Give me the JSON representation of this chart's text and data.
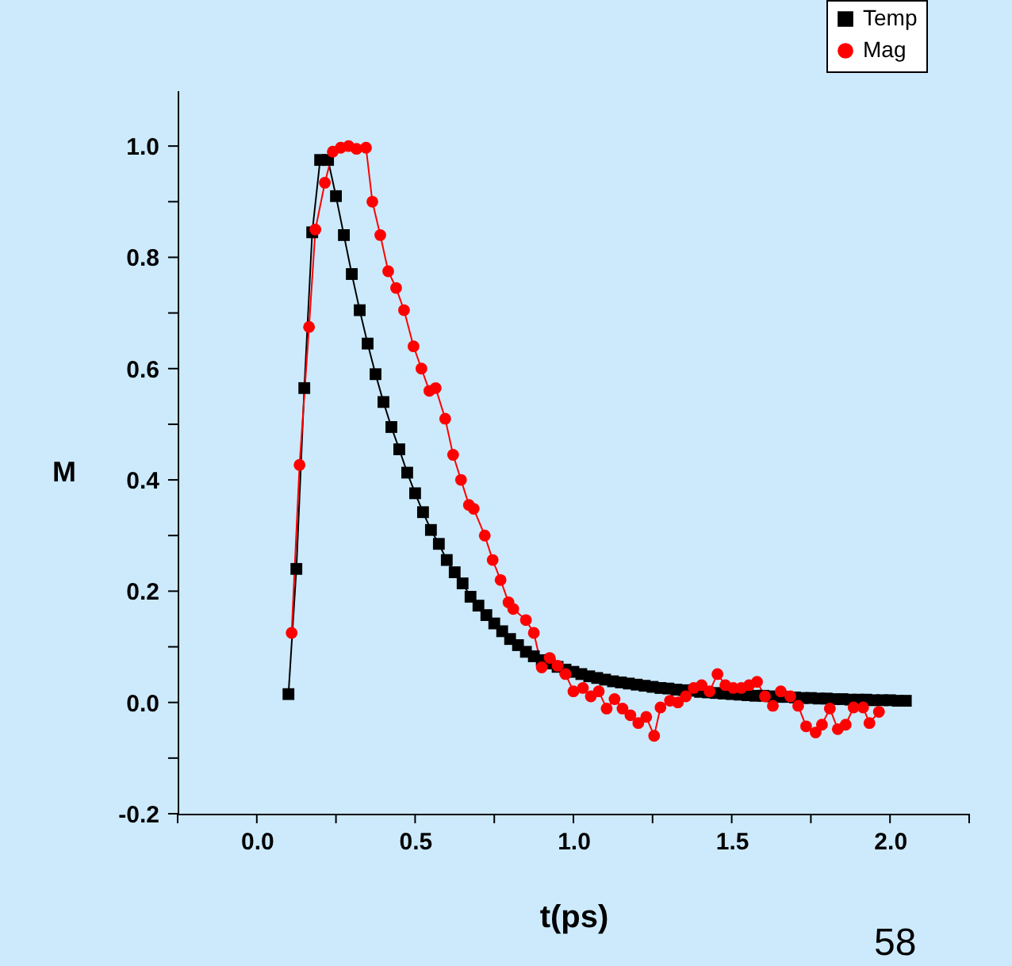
{
  "chart_data": {
    "type": "line",
    "xlabel": "t(ps)",
    "ylabel": "M",
    "xlim": [
      -0.25,
      2.25
    ],
    "ylim": [
      -0.2,
      1.1
    ],
    "xticks": [
      {
        "value": -0.25,
        "label": null
      },
      {
        "value": 0,
        "label": "0.0"
      },
      {
        "value": 0.25,
        "label": null
      },
      0.5,
      {
        "value": 0.75,
        "label": null
      },
      {
        "value": 1,
        "label": "1.0"
      },
      {
        "value": 1.25,
        "label": null
      },
      1.5,
      {
        "value": 1.75,
        "label": null
      },
      {
        "value": 2,
        "label": "2.0"
      },
      {
        "value": 2.25,
        "label": null
      }
    ],
    "yticks": [
      -0.2,
      {
        "value": -0.1,
        "label": null
      },
      {
        "value": 0,
        "label": "0.0"
      },
      {
        "value": 0.1,
        "label": null
      },
      0.2,
      {
        "value": 0.3,
        "label": null
      },
      0.4,
      {
        "value": 0.5,
        "label": null
      },
      0.6,
      {
        "value": 0.7,
        "label": null
      },
      0.8,
      {
        "value": 0.9,
        "label": null
      },
      {
        "value": 1,
        "label": "1.0"
      }
    ],
    "grid": false,
    "legend": "top right",
    "line_style": "solid",
    "annotations": [
      "58"
    ],
    "series": [
      {
        "name": "Temp",
        "color": "#000000",
        "marker": "square",
        "x": [
          0.1,
          0.125,
          0.15,
          0.175,
          0.2,
          0.225,
          0.25,
          0.275,
          0.3,
          0.325,
          0.35,
          0.375,
          0.4,
          0.425,
          0.45,
          0.475,
          0.5,
          0.525,
          0.55,
          0.575,
          0.6,
          0.625,
          0.65,
          0.675,
          0.7,
          0.725,
          0.75,
          0.775,
          0.8,
          0.825,
          0.85,
          0.875,
          0.9,
          0.925,
          0.95,
          0.975,
          1.0,
          1.025,
          1.05,
          1.075,
          1.1,
          1.125,
          1.15,
          1.175,
          1.2,
          1.225,
          1.25,
          1.275,
          1.3,
          1.325,
          1.35,
          1.375,
          1.4,
          1.425,
          1.45,
          1.475,
          1.5,
          1.525,
          1.55,
          1.575,
          1.6,
          1.625,
          1.65,
          1.675,
          1.7,
          1.725,
          1.75,
          1.775,
          1.8,
          1.825,
          1.85,
          1.875,
          1.9,
          1.925,
          1.95,
          1.975,
          2.0,
          2.025,
          2.05
        ],
        "values": [
          0.015,
          0.24,
          0.565,
          0.845,
          0.975,
          0.975,
          0.91,
          0.84,
          0.77,
          0.705,
          0.645,
          0.59,
          0.54,
          0.495,
          0.455,
          0.413,
          0.376,
          0.342,
          0.31,
          0.285,
          0.256,
          0.234,
          0.214,
          0.19,
          0.174,
          0.157,
          0.142,
          0.128,
          0.114,
          0.103,
          0.091,
          0.083,
          0.076,
          0.07,
          0.064,
          0.059,
          0.055,
          0.051,
          0.047,
          0.044,
          0.041,
          0.038,
          0.036,
          0.034,
          0.032,
          0.03,
          0.028,
          0.026,
          0.025,
          0.023,
          0.022,
          0.021,
          0.019,
          0.018,
          0.017,
          0.016,
          0.015,
          0.014,
          0.013,
          0.012,
          0.012,
          0.011,
          0.01,
          0.01,
          0.009,
          0.008,
          0.008,
          0.007,
          0.007,
          0.006,
          0.006,
          0.005,
          0.005,
          0.005,
          0.004,
          0.004,
          0.004,
          0.003,
          0.003
        ]
      },
      {
        "name": "Mag",
        "color": "#ff0000",
        "marker": "circle",
        "x": [
          0.11,
          0.135,
          0.165,
          0.185,
          0.215,
          0.24,
          0.265,
          0.29,
          0.315,
          0.345,
          0.365,
          0.39,
          0.415,
          0.44,
          0.465,
          0.495,
          0.52,
          0.545,
          0.565,
          0.595,
          0.62,
          0.645,
          0.67,
          0.685,
          0.72,
          0.745,
          0.77,
          0.795,
          0.81,
          0.85,
          0.875,
          0.9,
          0.925,
          0.95,
          0.975,
          1.0,
          1.03,
          1.055,
          1.08,
          1.105,
          1.13,
          1.155,
          1.18,
          1.205,
          1.23,
          1.255,
          1.275,
          1.305,
          1.33,
          1.355,
          1.38,
          1.405,
          1.43,
          1.455,
          1.48,
          1.505,
          1.53,
          1.555,
          1.58,
          1.605,
          1.63,
          1.655,
          1.685,
          1.71,
          1.735,
          1.765,
          1.785,
          1.81,
          1.835,
          1.86,
          1.885,
          1.915,
          1.935,
          1.965
        ],
        "values": [
          0.125,
          0.427,
          0.675,
          0.85,
          0.934,
          0.99,
          0.997,
          1.0,
          0.995,
          0.997,
          0.9,
          0.84,
          0.775,
          0.745,
          0.705,
          0.64,
          0.6,
          0.56,
          0.565,
          0.51,
          0.445,
          0.4,
          0.355,
          0.348,
          0.3,
          0.256,
          0.22,
          0.18,
          0.168,
          0.148,
          0.125,
          0.063,
          0.08,
          0.066,
          0.051,
          0.02,
          0.026,
          0.011,
          0.02,
          -0.011,
          0.006,
          -0.011,
          -0.023,
          -0.037,
          -0.026,
          -0.06,
          -0.009,
          0.003,
          0.0,
          0.011,
          0.026,
          0.031,
          0.02,
          0.051,
          0.031,
          0.026,
          0.026,
          0.031,
          0.037,
          0.011,
          -0.006,
          0.02,
          0.011,
          -0.006,
          -0.043,
          -0.054,
          -0.04,
          -0.011,
          -0.048,
          -0.04,
          -0.009,
          -0.009,
          -0.037,
          -0.017
        ]
      }
    ]
  }
}
